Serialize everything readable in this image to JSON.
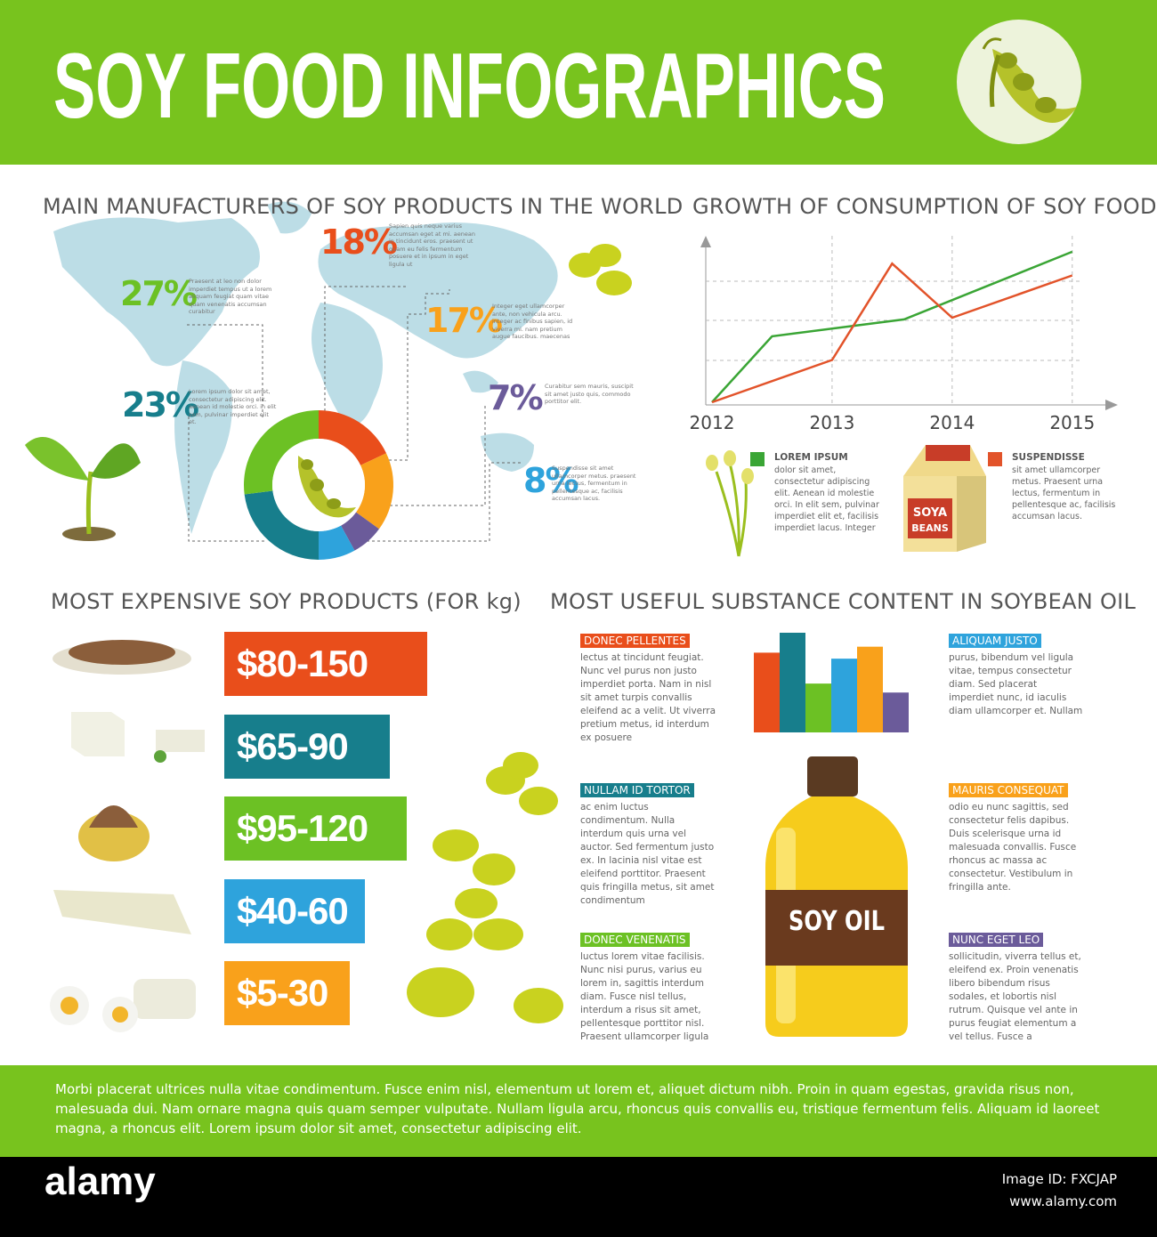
{
  "header": {
    "title": "SOY FOOD INFOGRAPHICS"
  },
  "manufacturers": {
    "type": "pie",
    "title": "MAIN MANUFACTURERS OF SOY PRODUCTS IN THE WORLD",
    "values": [
      18,
      17,
      7,
      8,
      23,
      27
    ],
    "value_labels": [
      "18%",
      "17%",
      "7%",
      "8%",
      "23%",
      "27%"
    ],
    "colors": [
      "#e94e1b",
      "#f9a11b",
      "#6b5b9a",
      "#2ea3dc",
      "#177e8c",
      "#6cc124"
    ],
    "notes": [
      "Sapien quis neque varius accumsan eget at mi. aenean in tincidunt eros. praesent ut quam eu felis fermentum posuere et in ipsum in eget ligula ut",
      "Integer eget ullamcorper ante, non vehicula arcu. integer ac finibus sapien, id viverra mi. nam pretium augue faucibus. maecenas",
      "Curabitur sem mauris, suscipit sit amet justo quis, commodo porttitor elit.",
      "Suspendisse sit amet ullamcorper metus. praesent urna lectus, fermentum in pellentesque ac, facilisis accumsan lacus.",
      "Lorem ipsum dolor sit amet, consectetur adipiscing elit. aenean id molestie orci. in elit sem, pulvinar imperdiet elit et.",
      "Praesent at leo non dolor imperdiet tempus ut a lorem aliquam feugiat quam vitae quam venenatis accumsan curabitur"
    ]
  },
  "growth": {
    "type": "line",
    "title": "GROWTH OF CONSUMPTION OF SOY FOODS",
    "xlim": [
      2012,
      2015.35
    ],
    "ylim": [
      0,
      100
    ],
    "xticks": [
      2012,
      2013,
      2014,
      2015
    ],
    "series": [
      {
        "name": "LOREM IPSUM",
        "color": "#3aa535",
        "x": [
          2012,
          2012.5,
          2013.6,
          2015
        ],
        "values": [
          0,
          39,
          49,
          89
        ],
        "description": "dolor sit amet, consectetur adipiscing elit. Aenean id molestie orci. In elit sem, pulvinar imperdiet elit et, facilisis imperdiet lacus. Integer"
      },
      {
        "name": "SUSPENDISSE",
        "color": "#e2532a",
        "x": [
          2012,
          2013,
          2013.5,
          2014,
          2015
        ],
        "values": [
          0,
          25,
          82,
          50,
          75
        ],
        "description": "sit amet ullamcorper metus. Praesent urna lectus, fermentum in pellentesque ac, facilisis accumsan lacus."
      }
    ]
  },
  "prices": {
    "title": "MOST EXPENSIVE SOY PRODUCTS (FOR kg)",
    "items": [
      {
        "label": "$80-150",
        "color": "#e94e1b"
      },
      {
        "label": "$65-90",
        "color": "#177e8c"
      },
      {
        "label": "$95-120",
        "color": "#6cc124"
      },
      {
        "label": "$40-60",
        "color": "#2ea3dc"
      },
      {
        "label": "$5-30",
        "color": "#f9a11b"
      }
    ]
  },
  "substances": {
    "type": "bar",
    "title": "MOST USEFUL SUBSTANCE CONTENT IN SOYBEAN OIL",
    "ylim": [
      0,
      100
    ],
    "values": [
      80,
      100,
      49,
      74,
      86,
      40
    ],
    "colors": [
      "#e94e1b",
      "#177e8c",
      "#6cc124",
      "#2ea3dc",
      "#f9a11b",
      "#6b5b9a"
    ],
    "items": [
      {
        "title": "DONEC PELLENTES",
        "text": "lectus at tincidunt feugiat. Nunc vel purus non justo imperdiet porta. Nam in nisl sit amet turpis convallis eleifend ac a velit. Ut viverra pretium metus, id interdum ex posuere"
      },
      {
        "title": "NULLAM ID TORTOR",
        "text": "ac enim luctus condimentum. Nulla interdum quis urna vel auctor. Sed fermentum justo ex. In lacinia nisl vitae est eleifend porttitor. Praesent quis fringilla metus, sit amet condimentum"
      },
      {
        "title": "DONEC VENENATIS",
        "text": "luctus lorem vitae facilisis. Nunc nisi purus, varius eu lorem in, sagittis interdum diam. Fusce nisl tellus, interdum a risus sit amet, pellentesque porttitor nisl. Praesent ullamcorper ligula"
      },
      {
        "title": "ALIQUAM JUSTO",
        "text": "purus, bibendum vel ligula vitae, tempus consectetur diam. Sed placerat imperdiet nunc, id iaculis diam ullamcorper et. Nullam"
      },
      {
        "title": "MAURIS CONSEQUAT",
        "text": "odio eu nunc sagittis, sed consectetur felis dapibus. Duis scelerisque urna id malesuada convallis. Fusce rhoncus ac massa ac consectetur. Vestibulum in fringilla ante."
      },
      {
        "title": "NUNC EGET LEO",
        "text": "sollicitudin, viverra tellus et, eleifend ex. Proin venenatis libero bibendum risus sodales, et lobortis nisl rutrum. Quisque vel ante in purus feugiat elementum a vel tellus. Fusce a"
      }
    ]
  },
  "illustrations": {
    "package": [
      "SOYA",
      "BEANS"
    ],
    "bottle": "SOY OIL"
  },
  "footer": {
    "text": "Morbi placerat ultrices nulla vitae condimentum. Fusce enim nisl, elementum ut lorem et, aliquet dictum nibh. Proin in quam egestas, gravida risus non, malesuada dui. Nam ornare magna quis quam semper vulputate. Nullam ligula arcu, rhoncus quis convallis eu, tristique fermentum felis. Aliquam id laoreet magna, a rhoncus elit. Lorem ipsum dolor sit amet, consectetur adipiscing elit."
  },
  "watermark": {
    "logo": "alamy",
    "id": "Image ID: FXCJAP",
    "url": "www.alamy.com"
  }
}
